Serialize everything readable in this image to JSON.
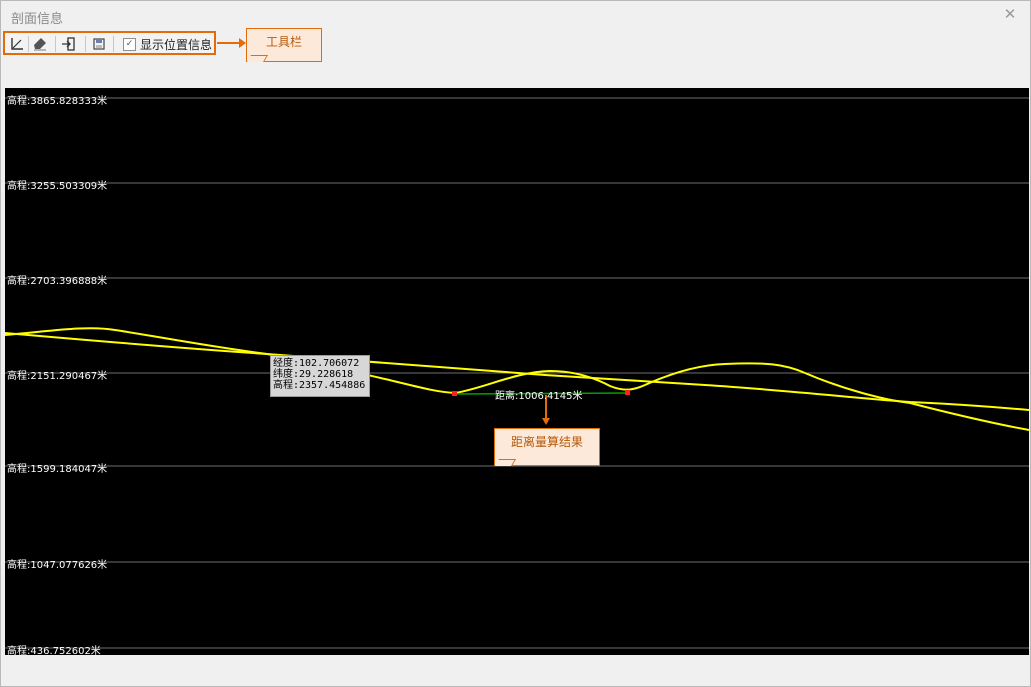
{
  "window": {
    "title": "剖面信息"
  },
  "toolbar": {
    "buttons": [
      {
        "name": "measure-icon"
      },
      {
        "name": "clear-icon"
      },
      {
        "name": "export-icon"
      },
      {
        "name": "save-icon"
      }
    ],
    "show_position_label": "显示位置信息",
    "show_position_checked": true
  },
  "annotations": {
    "toolbar_callout": "工具栏",
    "distance_callout": "距离量算结果"
  },
  "chart_data": {
    "type": "line",
    "elevation_labels": [
      "高程:3865.828333米",
      "高程:3255.503309米",
      "高程:2703.396888米",
      "高程:2151.290467米",
      "高程:1599.184047米",
      "高程:1047.077626米",
      "高程:436.752602米"
    ],
    "line_color": "#ffff00",
    "grid": true
  },
  "tooltip": {
    "lng": "经度:102.706072",
    "lat": "纬度:29.228618",
    "elev": "高程:2357.454886"
  },
  "distance": {
    "label": "距离:1006.4145米",
    "line_color": "#00a000",
    "point_color": "#ff2020"
  }
}
